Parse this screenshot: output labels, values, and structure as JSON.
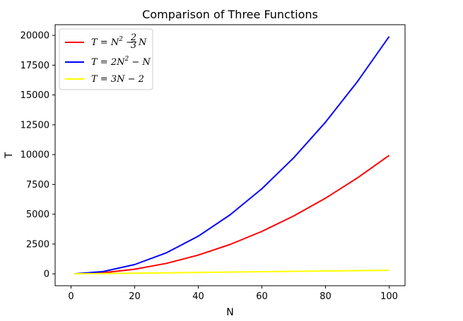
{
  "chart_data": {
    "type": "line",
    "title": "Comparison of Three Functions",
    "xlabel": "N",
    "ylabel": "T",
    "xlim": [
      -5,
      105
    ],
    "ylim": [
      -995,
      20895
    ],
    "xticks": [
      0,
      20,
      40,
      60,
      80,
      100
    ],
    "yticks": [
      0,
      2500,
      5000,
      7500,
      10000,
      12500,
      15000,
      17500,
      20000
    ],
    "grid": false,
    "legend_position": "top-left",
    "series": [
      {
        "name": "T = N² − (2/3)N",
        "color": "#ff0000",
        "x": [
          1,
          10,
          20,
          30,
          40,
          50,
          60,
          70,
          80,
          90,
          100
        ],
        "y": [
          0.33,
          93.3,
          386.7,
          880,
          1573.3,
          2466.7,
          3560,
          4853.3,
          6346.7,
          8040,
          9933.3
        ]
      },
      {
        "name": "T = 2N² − N",
        "color": "#0000ff",
        "x": [
          1,
          10,
          20,
          30,
          40,
          50,
          60,
          70,
          80,
          90,
          100
        ],
        "y": [
          1,
          190,
          780,
          1770,
          3160,
          4950,
          7140,
          9730,
          12720,
          16110,
          19900
        ]
      },
      {
        "name": "T = 3N − 2",
        "color": "#ffff00",
        "x": [
          1,
          10,
          20,
          30,
          40,
          50,
          60,
          70,
          80,
          90,
          100
        ],
        "y": [
          1,
          28,
          58,
          88,
          118,
          148,
          178,
          208,
          238,
          268,
          298
        ]
      }
    ]
  }
}
